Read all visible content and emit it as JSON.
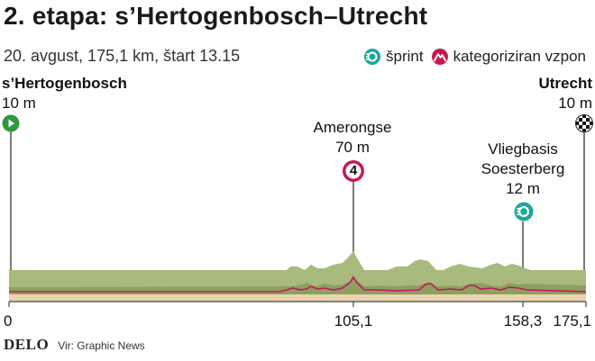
{
  "title": "2. etapa: s’Hertogenbosch–Utrecht",
  "subtitle": "20. avgust,  175,1 km, štart 13.15",
  "legend": {
    "sprint_label": "šprint",
    "climb_label": "kategoriziran vzpon",
    "sprint_icon": "sprint-icon",
    "climb_icon": "mountain-icon"
  },
  "start": {
    "name": "s’Hertogenbosch",
    "elevation": "10 m"
  },
  "finish": {
    "name": "Utrecht",
    "elevation": "10 m"
  },
  "climb": {
    "name": "Amerongse",
    "elevation": "70 m",
    "category": "4",
    "km": 105.1
  },
  "sprint": {
    "name_line1": "Vliegbasis",
    "name_line2": "Soesterberg",
    "elevation": "12 m",
    "km": 158.3
  },
  "axis": {
    "km0": "0",
    "km1": "105,1",
    "km2": "158,3",
    "km3": "175,1"
  },
  "footer": {
    "brand": "DELO",
    "source": "Vir: Graphic News"
  },
  "colors": {
    "terrain_top": "#a8ba7d",
    "terrain_side": "#8ea05f",
    "base": "#e8d5b0",
    "route_line": "#c2185b",
    "start_green": "#2e9a3a",
    "sprint_teal": "#19a79a",
    "climb_red": "#c8194f"
  }
}
